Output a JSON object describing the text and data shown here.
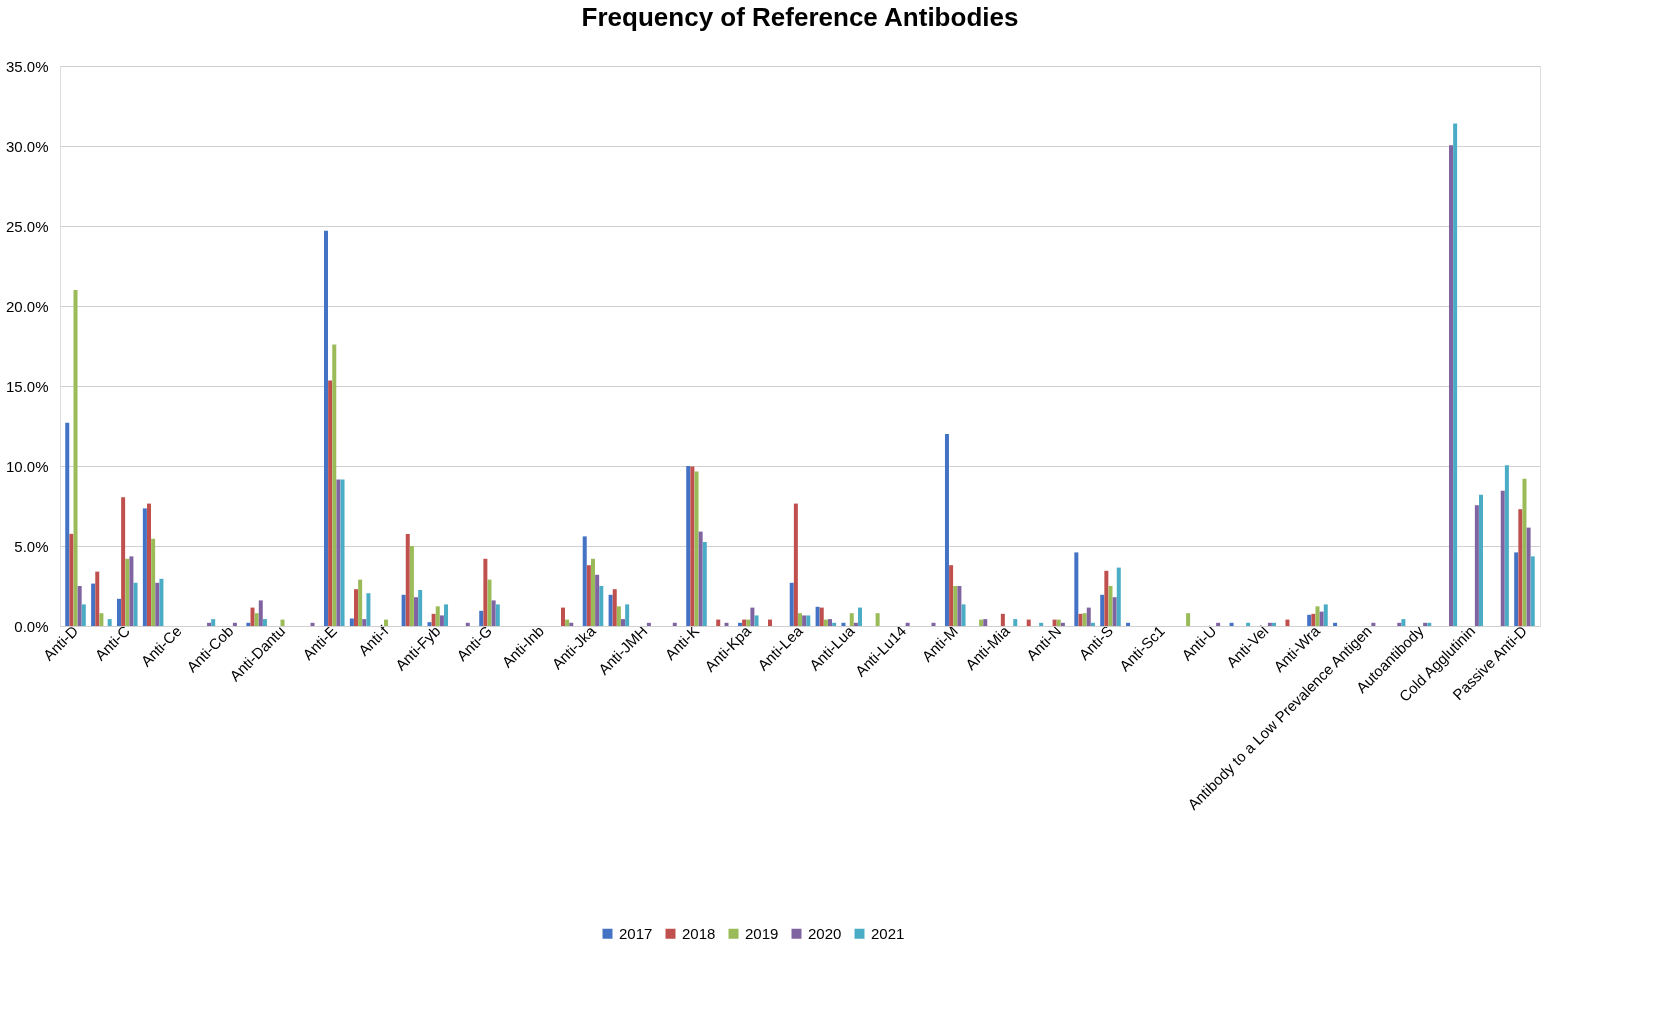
{
  "chart_data": {
    "type": "bar",
    "title": "Frequency of Reference Antibodies",
    "categories": [
      "Anti-D",
      null,
      "Anti-C",
      null,
      "Anti-Ce",
      null,
      "Anti-Cob",
      null,
      "Anti-Dantu",
      null,
      "Anti-E",
      null,
      "Anti-f",
      null,
      "Anti-Fyb",
      null,
      "Anti-G",
      null,
      "Anti-Inb",
      null,
      "Anti-Jka",
      null,
      "Anti-JMH",
      null,
      "Anti-K",
      null,
      "Anti-Kpa",
      null,
      "Anti-Lea",
      null,
      "Anti-Lua",
      null,
      "Anti-Lu14",
      null,
      "Anti-M",
      null,
      "Anti-Mia",
      null,
      "Anti-N",
      null,
      "Anti-S",
      null,
      "Anti-Sc1",
      null,
      "Anti-U",
      null,
      "Anti-Vel",
      null,
      "Anti-Wra",
      null,
      "Antibody to a Low Prevalence Antigen",
      null,
      "Autoantibody",
      null,
      "Cold Agglutinin",
      null,
      "Passive Anti-D"
    ],
    "series": [
      {
        "name": "2017",
        "color": "#4472c4",
        "values": [
          12.7,
          2.65,
          1.7,
          7.35,
          null,
          null,
          null,
          0.2,
          null,
          null,
          24.7,
          0.47,
          null,
          1.95,
          0.24,
          null,
          0.95,
          null,
          null,
          null,
          5.6,
          1.95,
          null,
          null,
          10.0,
          null,
          0.2,
          null,
          2.7,
          1.2,
          0.2,
          null,
          null,
          null,
          12.0,
          null,
          null,
          null,
          null,
          4.6,
          1.95,
          0.2,
          null,
          null,
          null,
          0.2,
          null,
          null,
          0.7,
          0.2,
          null,
          null,
          null,
          null,
          null,
          null,
          4.6
        ]
      },
      {
        "name": "2018",
        "color": "#c0504d",
        "values": [
          5.76,
          3.4,
          8.05,
          7.65,
          null,
          null,
          null,
          1.15,
          null,
          null,
          15.35,
          2.3,
          null,
          5.75,
          0.76,
          null,
          4.2,
          null,
          null,
          1.15,
          3.8,
          2.3,
          null,
          null,
          9.97,
          0.4,
          0.4,
          0.4,
          7.65,
          1.15,
          null,
          null,
          null,
          null,
          3.8,
          null,
          0.76,
          0.4,
          0.4,
          0.76,
          3.45,
          null,
          null,
          null,
          null,
          null,
          null,
          0.4,
          0.76,
          null,
          null,
          null,
          null,
          null,
          null,
          null,
          7.3
        ]
      },
      {
        "name": "2019",
        "color": "#9bbb59",
        "values": [
          21.0,
          0.8,
          4.2,
          5.45,
          null,
          null,
          null,
          0.8,
          0.4,
          null,
          17.6,
          2.9,
          0.4,
          5.0,
          1.23,
          null,
          2.9,
          null,
          null,
          0.4,
          4.2,
          1.23,
          null,
          null,
          9.65,
          null,
          0.4,
          null,
          0.8,
          0.4,
          0.8,
          0.8,
          null,
          null,
          2.5,
          0.4,
          null,
          null,
          0.4,
          0.8,
          2.5,
          null,
          null,
          0.8,
          null,
          null,
          null,
          null,
          1.23,
          null,
          null,
          null,
          null,
          null,
          null,
          null,
          9.2
        ]
      },
      {
        "name": "2020",
        "color": "#8064a2",
        "values": [
          2.5,
          null,
          4.35,
          2.7,
          null,
          0.2,
          0.2,
          1.6,
          null,
          0.2,
          9.15,
          0.43,
          null,
          1.8,
          0.66,
          0.2,
          1.6,
          null,
          null,
          0.2,
          3.2,
          0.43,
          0.2,
          0.2,
          5.9,
          0.2,
          1.15,
          null,
          0.66,
          0.43,
          0.2,
          null,
          0.2,
          0.2,
          2.5,
          0.43,
          null,
          null,
          0.2,
          1.15,
          1.8,
          null,
          null,
          null,
          0.2,
          null,
          0.2,
          null,
          0.9,
          null,
          0.2,
          0.2,
          0.2,
          30.05,
          7.55,
          8.45,
          6.15
        ]
      },
      {
        "name": "2021",
        "color": "#4bacc6",
        "values": [
          1.35,
          0.43,
          2.7,
          2.95,
          null,
          0.43,
          null,
          0.43,
          null,
          null,
          9.15,
          2.05,
          null,
          2.25,
          1.35,
          null,
          1.35,
          null,
          null,
          null,
          2.5,
          1.35,
          null,
          null,
          5.25,
          null,
          0.66,
          null,
          0.66,
          0.2,
          1.15,
          null,
          null,
          null,
          1.35,
          null,
          0.43,
          0.2,
          null,
          0.2,
          3.65,
          null,
          null,
          null,
          null,
          0.2,
          0.2,
          null,
          1.35,
          null,
          null,
          0.43,
          0.2,
          31.4,
          8.2,
          10.05,
          4.35
        ]
      }
    ],
    "ylim": [
      0,
      35
    ],
    "yticks": [
      {
        "value": 0,
        "label": "0.0%"
      },
      {
        "value": 5,
        "label": "5.0%"
      },
      {
        "value": 10,
        "label": "10.0%"
      },
      {
        "value": 15,
        "label": "15.0%"
      },
      {
        "value": 20,
        "label": "20.0%"
      },
      {
        "value": 25,
        "label": "25.0%"
      },
      {
        "value": 30,
        "label": "30.0%"
      },
      {
        "value": 35,
        "label": "35.0%"
      }
    ],
    "grid": "y",
    "legend": "bottom"
  }
}
